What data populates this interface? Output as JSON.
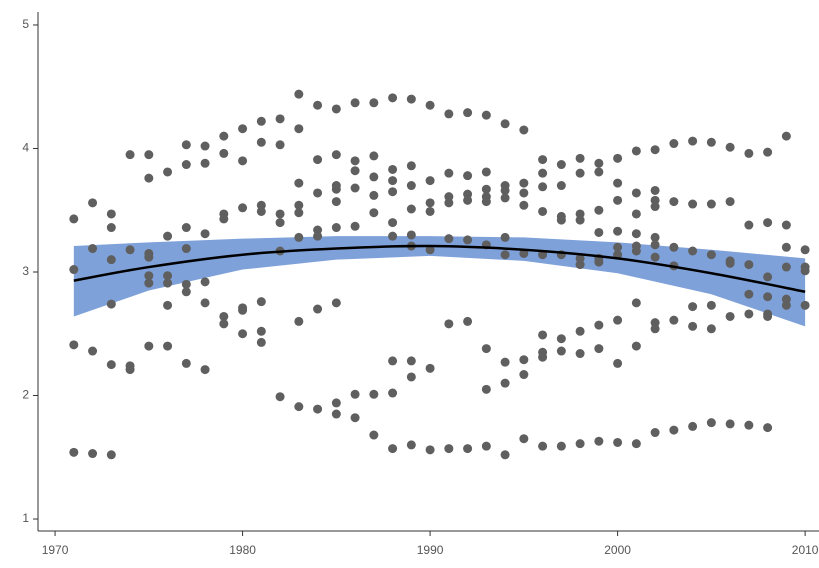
{
  "chart_data": {
    "type": "scatter",
    "x": [
      1971,
      1971,
      1971,
      1971,
      1972,
      1972,
      1972,
      1972,
      1973,
      1973,
      1973,
      1973,
      1973,
      1973,
      1974,
      1974,
      1974,
      1974,
      1975,
      1975,
      1975,
      1975,
      1975,
      1975,
      1975,
      1976,
      1976,
      1976,
      1976,
      1976,
      1976,
      1977,
      1977,
      1977,
      1977,
      1977,
      1977,
      1977,
      1978,
      1978,
      1978,
      1978,
      1978,
      1978,
      1979,
      1979,
      1979,
      1979,
      1979,
      1979,
      1980,
      1980,
      1980,
      1980,
      1980,
      1980,
      1981,
      1981,
      1981,
      1981,
      1981,
      1981,
      1981,
      1982,
      1982,
      1982,
      1982,
      1982,
      1982,
      1983,
      1983,
      1983,
      1983,
      1983,
      1983,
      1983,
      1983,
      1984,
      1984,
      1984,
      1984,
      1984,
      1984,
      1984,
      1985,
      1985,
      1985,
      1985,
      1985,
      1985,
      1985,
      1985,
      1985,
      1986,
      1986,
      1986,
      1986,
      1986,
      1986,
      1986,
      1987,
      1987,
      1987,
      1987,
      1987,
      1987,
      1987,
      1988,
      1988,
      1988,
      1988,
      1988,
      1988,
      1988,
      1988,
      1988,
      1989,
      1989,
      1989,
      1989,
      1989,
      1989,
      1989,
      1989,
      1989,
      1990,
      1990,
      1990,
      1990,
      1990,
      1990,
      1990,
      1991,
      1991,
      1991,
      1991,
      1991,
      1991,
      1991,
      1992,
      1992,
      1992,
      1992,
      1992,
      1992,
      1992,
      1993,
      1993,
      1993,
      1993,
      1993,
      1993,
      1993,
      1993,
      1993,
      1994,
      1994,
      1994,
      1994,
      1994,
      1994,
      1994,
      1994,
      1994,
      1995,
      1995,
      1995,
      1995,
      1995,
      1995,
      1995,
      1995,
      1996,
      1996,
      1996,
      1996,
      1996,
      1996,
      1996,
      1996,
      1996,
      1997,
      1997,
      1997,
      1997,
      1997,
      1997,
      1997,
      1997,
      1998,
      1998,
      1998,
      1998,
      1998,
      1998,
      1998,
      1998,
      1998,
      1999,
      1999,
      1999,
      1999,
      1999,
      1999,
      1999,
      1999,
      1999,
      2000,
      2000,
      2000,
      2000,
      2000,
      2000,
      2000,
      2000,
      2000,
      2001,
      2001,
      2001,
      2001,
      2001,
      2001,
      2001,
      2001,
      2001,
      2002,
      2002,
      2002,
      2002,
      2002,
      2002,
      2002,
      2002,
      2002,
      2002,
      2003,
      2003,
      2003,
      2003,
      2003,
      2003,
      2004,
      2004,
      2004,
      2004,
      2004,
      2004,
      2005,
      2005,
      2005,
      2005,
      2005,
      2005,
      2006,
      2006,
      2006,
      2006,
      2006,
      2006,
      2007,
      2007,
      2007,
      2007,
      2007,
      2007,
      2008,
      2008,
      2008,
      2008,
      2008,
      2008,
      2008,
      2009,
      2009,
      2009,
      2009,
      2009,
      2009,
      2010,
      2010,
      2010,
      2010
    ],
    "values": [
      3.43,
      3.02,
      2.41,
      1.54,
      3.56,
      3.19,
      2.36,
      1.53,
      3.47,
      3.36,
      3.1,
      2.74,
      2.25,
      1.52,
      3.95,
      3.18,
      2.24,
      2.21,
      3.95,
      3.76,
      3.15,
      3.12,
      2.97,
      2.91,
      2.4,
      3.81,
      3.29,
      2.97,
      2.91,
      2.73,
      2.4,
      4.03,
      3.87,
      3.36,
      3.19,
      2.9,
      2.84,
      2.26,
      4.02,
      3.88,
      3.31,
      2.92,
      2.75,
      2.21,
      4.1,
      3.96,
      3.47,
      3.43,
      2.64,
      2.58,
      4.16,
      3.9,
      3.52,
      2.71,
      2.69,
      2.5,
      4.22,
      4.05,
      3.54,
      3.49,
      2.76,
      2.52,
      2.43,
      4.24,
      4.03,
      3.47,
      3.4,
      3.17,
      1.99,
      4.44,
      4.16,
      3.72,
      3.54,
      3.48,
      3.28,
      2.6,
      1.91,
      4.35,
      3.91,
      3.64,
      3.34,
      3.29,
      2.7,
      1.89,
      4.32,
      3.95,
      3.7,
      3.67,
      3.57,
      3.36,
      2.75,
      1.94,
      1.85,
      4.37,
      3.9,
      3.82,
      3.68,
      3.37,
      2.01,
      1.82,
      4.37,
      3.94,
      3.77,
      3.62,
      3.48,
      2.01,
      1.68,
      4.41,
      3.83,
      3.74,
      3.65,
      3.4,
      3.29,
      2.28,
      2.02,
      1.57,
      4.4,
      3.86,
      3.7,
      3.51,
      3.3,
      3.21,
      2.28,
      2.15,
      1.6,
      4.35,
      3.74,
      3.56,
      3.49,
      3.18,
      2.22,
      1.56,
      4.28,
      3.8,
      3.61,
      3.56,
      3.27,
      2.58,
      1.57,
      4.29,
      3.78,
      3.63,
      3.58,
      3.26,
      2.6,
      1.57,
      4.27,
      3.81,
      3.67,
      3.61,
      3.57,
      3.22,
      2.38,
      2.05,
      1.59,
      4.2,
      3.7,
      3.66,
      3.6,
      3.28,
      3.14,
      2.27,
      2.1,
      1.52,
      4.15,
      3.72,
      3.64,
      3.54,
      3.15,
      2.29,
      2.17,
      1.65,
      3.91,
      3.8,
      3.69,
      3.49,
      3.14,
      2.49,
      2.35,
      2.31,
      1.59,
      3.87,
      3.7,
      3.45,
      3.42,
      3.14,
      2.46,
      2.36,
      1.59,
      3.92,
      3.8,
      3.47,
      3.42,
      3.11,
      3.06,
      2.52,
      2.34,
      1.61,
      3.88,
      3.81,
      3.5,
      3.32,
      3.11,
      3.08,
      2.57,
      2.38,
      1.63,
      3.92,
      3.72,
      3.58,
      3.33,
      3.2,
      3.14,
      2.61,
      2.26,
      1.62,
      3.98,
      3.64,
      3.47,
      3.31,
      3.21,
      3.17,
      2.75,
      2.4,
      1.61,
      3.99,
      3.66,
      3.58,
      3.53,
      3.28,
      3.22,
      3.12,
      2.59,
      2.54,
      1.7,
      4.04,
      3.57,
      3.2,
      3.05,
      2.61,
      1.72,
      4.06,
      3.55,
      3.17,
      2.72,
      2.56,
      1.75,
      4.05,
      3.55,
      3.14,
      2.73,
      2.54,
      1.78,
      4.01,
      3.57,
      3.09,
      3.07,
      2.64,
      1.77,
      3.96,
      3.38,
      3.06,
      2.82,
      2.66,
      1.76,
      3.97,
      3.4,
      2.96,
      2.8,
      2.66,
      2.64,
      1.74,
      4.1,
      3.38,
      3.2,
      3.04,
      2.78,
      2.73,
      3.18,
      3.04,
      3.01,
      2.73
    ],
    "color": "#5f5f5f",
    "fit": {
      "x": [
        1971,
        1975,
        1980,
        1985,
        1990,
        1995,
        2000,
        2005,
        2010
      ],
      "values": [
        2.93,
        3.04,
        3.14,
        3.19,
        3.21,
        3.18,
        3.11,
        2.99,
        2.84
      ],
      "upper": [
        3.21,
        3.24,
        3.27,
        3.29,
        3.29,
        3.28,
        3.24,
        3.18,
        3.11
      ],
      "lower": [
        2.64,
        2.85,
        3.02,
        3.1,
        3.13,
        3.09,
        2.99,
        2.82,
        2.56
      ],
      "color": "#000000",
      "band_color": "#7fa1d9"
    },
    "xlim": [
      1969.09,
      2010.9
    ],
    "ylim": [
      0.903,
      5.105
    ],
    "xticks": [
      1970,
      1980,
      1990,
      2000,
      2010
    ],
    "yticks": [
      1,
      2,
      3,
      4,
      5
    ]
  }
}
